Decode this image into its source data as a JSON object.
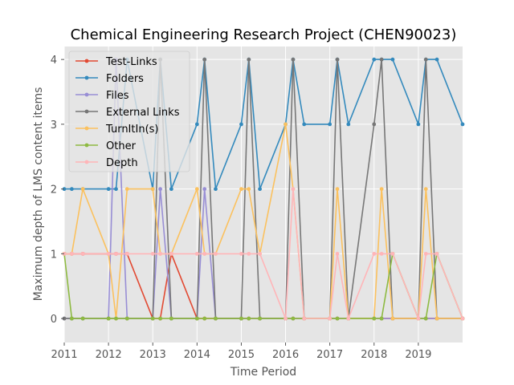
{
  "chart_data": {
    "type": "line",
    "title": "Chemical Engineering Research Project (CHEN90023)",
    "xlabel": "Time Period",
    "ylabel": "Maximum depth of LMS content items",
    "xlim": [
      2011.0,
      2020.0
    ],
    "ylim": [
      -0.37,
      4.2
    ],
    "xticks": [
      2011,
      2012,
      2013,
      2014,
      2015,
      2016,
      2017,
      2018,
      2019
    ],
    "yticks": [
      0,
      1,
      2,
      3,
      4
    ],
    "grid": true,
    "legend_position": "top-left",
    "x": [
      2011.0,
      2011.17,
      2011.42,
      2012.0,
      2012.17,
      2012.42,
      2013.0,
      2013.17,
      2013.42,
      2014.0,
      2014.17,
      2014.42,
      2015.0,
      2015.17,
      2015.42,
      2016.0,
      2016.17,
      2016.42,
      2017.0,
      2017.17,
      2017.42,
      2018.0,
      2018.17,
      2018.42,
      2019.0,
      2019.17,
      2019.42,
      2020.0
    ],
    "series": [
      {
        "name": "Test-Links",
        "color": "#E24A33",
        "values": [
          1,
          1,
          1,
          1,
          1,
          1,
          0,
          0,
          1,
          0,
          0,
          0,
          0,
          0,
          0,
          0,
          0,
          0,
          0,
          0,
          0,
          0,
          0,
          0,
          0,
          0,
          0,
          0
        ]
      },
      {
        "name": "Folders",
        "color": "#348ABD",
        "values": [
          2,
          2,
          2,
          2,
          2,
          4,
          2,
          4,
          2,
          3,
          4,
          2,
          3,
          4,
          2,
          3,
          4,
          3,
          3,
          4,
          3,
          4,
          4,
          4,
          3,
          4,
          4,
          3
        ]
      },
      {
        "name": "Files",
        "color": "#988ED5",
        "values": [
          0,
          0,
          0,
          0,
          4,
          0,
          0,
          2,
          0,
          0,
          2,
          0,
          0,
          0,
          0,
          0,
          0,
          0,
          0,
          0,
          0,
          0,
          0,
          0,
          0,
          0,
          0,
          0
        ]
      },
      {
        "name": "External Links",
        "color": "#777777",
        "values": [
          0,
          0,
          0,
          0,
          0,
          0,
          0,
          4,
          0,
          0,
          4,
          0,
          0,
          4,
          0,
          0,
          4,
          0,
          0,
          4,
          0,
          3,
          4,
          0,
          0,
          4,
          0,
          0
        ]
      },
      {
        "name": "TurnItIn(s)",
        "color": "#FBC15E",
        "values": [
          1,
          1,
          2,
          1,
          0,
          2,
          2,
          1,
          1,
          2,
          1,
          1,
          2,
          2,
          1,
          3,
          2,
          0,
          0,
          2,
          0,
          0,
          2,
          0,
          0,
          2,
          0,
          0
        ]
      },
      {
        "name": "Other",
        "color": "#8EBA42",
        "values": [
          1,
          0,
          0,
          0,
          0,
          0,
          0,
          0,
          0,
          0,
          0,
          0,
          0,
          0,
          0,
          0,
          0,
          0,
          0,
          0,
          0,
          0,
          0,
          1,
          0,
          0,
          1,
          0
        ]
      },
      {
        "name": "Depth",
        "color": "#FFB5B8",
        "values": [
          1,
          1,
          1,
          1,
          1,
          1,
          1,
          1,
          1,
          1,
          1,
          1,
          1,
          1,
          1,
          0,
          2,
          0,
          0,
          1,
          0,
          1,
          1,
          1,
          0,
          1,
          1,
          0
        ]
      }
    ]
  }
}
